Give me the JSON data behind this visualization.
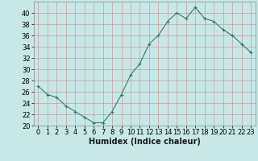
{
  "x": [
    0,
    1,
    2,
    3,
    4,
    5,
    6,
    7,
    8,
    9,
    10,
    11,
    12,
    13,
    14,
    15,
    16,
    17,
    18,
    19,
    20,
    21,
    22,
    23
  ],
  "y": [
    27,
    25.5,
    25,
    23.5,
    22.5,
    21.5,
    20.5,
    20.5,
    22.5,
    25.5,
    29,
    31,
    34.5,
    36,
    38.5,
    40,
    39,
    41,
    39,
    38.5,
    37,
    36,
    34.5,
    33
  ],
  "line_color": "#2e7d6e",
  "marker_color": "#2e7d6e",
  "bg_color": "#c8e8e8",
  "grid_color": "#cc9999",
  "xlabel": "Humidex (Indice chaleur)",
  "ylim": [
    20,
    42
  ],
  "xlim": [
    -0.5,
    23.5
  ],
  "yticks": [
    20,
    22,
    24,
    26,
    28,
    30,
    32,
    34,
    36,
    38,
    40
  ],
  "xticks": [
    0,
    1,
    2,
    3,
    4,
    5,
    6,
    7,
    8,
    9,
    10,
    11,
    12,
    13,
    14,
    15,
    16,
    17,
    18,
    19,
    20,
    21,
    22,
    23
  ],
  "tick_fontsize": 6,
  "label_fontsize": 7
}
